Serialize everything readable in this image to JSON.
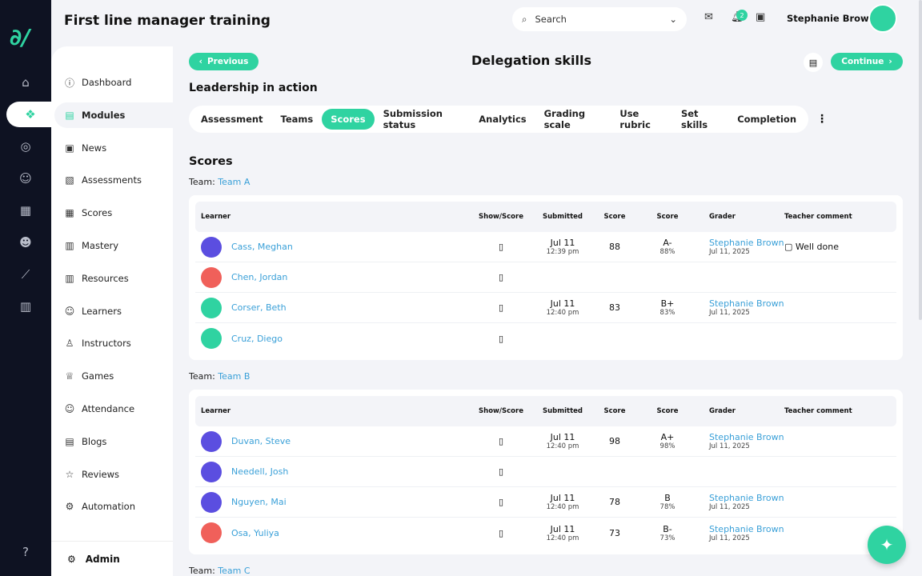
{
  "app": {
    "title": "First line manager training",
    "logo": "cL"
  },
  "header": {
    "search_placeholder": "Search",
    "notifications": "2",
    "user": "Stephanie Brown"
  },
  "nav": {
    "items": [
      "Dashboard",
      "Modules",
      "News",
      "Assessments",
      "Scores",
      "Mastery",
      "Resources",
      "Learners",
      "Instructors",
      "Games",
      "Attendance",
      "Blogs",
      "Reviews",
      "Automation"
    ],
    "admin": "Admin"
  },
  "page": {
    "previous": "Previous",
    "continue": "Continue",
    "title": "Delegation skills",
    "subtitle": "Leadership in action",
    "section": "Scores",
    "team_prefix": "Team:"
  },
  "tabs": [
    "Assessment",
    "Teams",
    "Scores",
    "Submission status",
    "Analytics",
    "Grading scale",
    "Use rubric",
    "Set skills",
    "Completion"
  ],
  "columns": [
    "Learner",
    "Show/Score",
    "Submitted",
    "Score",
    "Score",
    "Grader",
    "Teacher comment"
  ],
  "teams": [
    {
      "name": "Team A",
      "rows": [
        {
          "learner": "Cass, Meghan",
          "date": "Jul 11",
          "time": "12:39 pm",
          "score": "88",
          "grade": "A-",
          "pct": "88%",
          "grader": "Stephanie Brown",
          "graded": "Jul 11, 2025",
          "comment": "Well done",
          "color": "#5b4ee0"
        },
        {
          "learner": "Chen, Jordan",
          "color": "#f0605a"
        },
        {
          "learner": "Corser, Beth",
          "date": "Jul 11",
          "time": "12:40 pm",
          "score": "83",
          "grade": "B+",
          "pct": "83%",
          "grader": "Stephanie Brown",
          "graded": "Jul 11, 2025",
          "color": "#2fd3a1"
        },
        {
          "learner": "Cruz, Diego",
          "color": "#2fd3a1"
        }
      ]
    },
    {
      "name": "Team B",
      "rows": [
        {
          "learner": "Duvan, Steve",
          "date": "Jul 11",
          "time": "12:40 pm",
          "score": "98",
          "grade": "A+",
          "pct": "98%",
          "grader": "Stephanie Brown",
          "graded": "Jul 11, 2025",
          "color": "#5b4ee0"
        },
        {
          "learner": "Needell, Josh",
          "color": "#5b4ee0"
        },
        {
          "learner": "Nguyen, Mai",
          "date": "Jul 11",
          "time": "12:40 pm",
          "score": "78",
          "grade": "B",
          "pct": "78%",
          "grader": "Stephanie Brown",
          "graded": "Jul 11, 2025",
          "color": "#5b4ee0"
        },
        {
          "learner": "Osa, Yuliya",
          "date": "Jul 11",
          "time": "12:40 pm",
          "score": "73",
          "grade": "B-",
          "pct": "73%",
          "grader": "Stephanie Brown",
          "graded": "Jul 11, 2025",
          "color": "#f0605a"
        }
      ]
    },
    {
      "name": "Team C",
      "rows": []
    }
  ]
}
